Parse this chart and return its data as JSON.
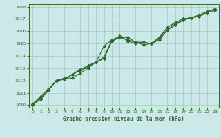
{
  "xlabel": "Graphe pression niveau de la mer (hPa)",
  "bg_color": "#cce8e8",
  "grid_color": "#aacccc",
  "line_color": "#2d6b2d",
  "marker_color": "#2d6b2d",
  "ylim": [
    1009.8,
    1018.2
  ],
  "xlim": [
    -0.5,
    23.5
  ],
  "yticks": [
    1010,
    1011,
    1012,
    1013,
    1014,
    1015,
    1016,
    1017,
    1018
  ],
  "xticks": [
    0,
    1,
    2,
    3,
    4,
    5,
    6,
    7,
    8,
    9,
    10,
    11,
    12,
    13,
    14,
    15,
    16,
    17,
    18,
    19,
    20,
    21,
    22,
    23
  ],
  "series": [
    [
      1010.1,
      1010.7,
      1011.3,
      1012.0,
      1012.1,
      1012.5,
      1012.8,
      1013.1,
      1013.5,
      1013.9,
      1015.3,
      1015.6,
      1015.2,
      1015.0,
      1015.1,
      1015.0,
      1015.5,
      1016.3,
      1016.7,
      1017.0,
      1017.1,
      1017.2,
      1017.5,
      1017.7
    ],
    [
      1010.1,
      1010.7,
      1011.3,
      1012.0,
      1012.2,
      1012.2,
      1012.6,
      1013.0,
      1013.5,
      1014.8,
      1015.3,
      1015.5,
      1015.3,
      1015.1,
      1014.9,
      1015.0,
      1015.5,
      1016.3,
      1016.7,
      1017.0,
      1017.1,
      1017.2,
      1017.5,
      1017.7
    ],
    [
      1010.0,
      1010.6,
      1011.2,
      1012.0,
      1012.1,
      1012.5,
      1012.9,
      1013.2,
      1013.5,
      1013.8,
      1015.2,
      1015.5,
      1015.5,
      1015.1,
      1015.1,
      1015.0,
      1015.3,
      1016.1,
      1016.5,
      1016.9,
      1017.1,
      1017.3,
      1017.6,
      1017.8
    ],
    [
      1010.0,
      1010.5,
      1011.2,
      1012.0,
      1012.1,
      1012.5,
      1012.9,
      1013.2,
      1013.5,
      1013.8,
      1015.2,
      1015.5,
      1015.5,
      1015.1,
      1015.1,
      1015.0,
      1015.4,
      1016.1,
      1016.6,
      1016.9,
      1017.1,
      1017.3,
      1017.6,
      1017.8
    ]
  ]
}
